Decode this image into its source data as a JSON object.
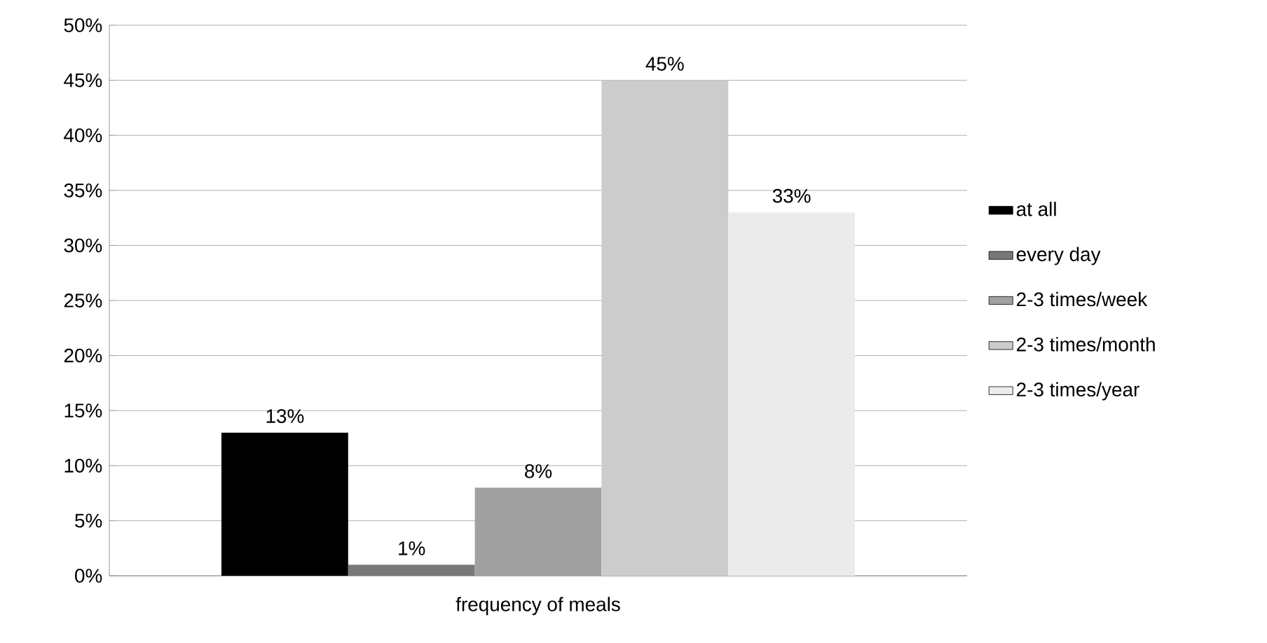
{
  "chart_data": {
    "type": "bar",
    "categories": [
      "frequency of meals"
    ],
    "series": [
      {
        "name": "at all",
        "color": "#000000",
        "values": [
          13
        ],
        "value_labels": [
          "13%"
        ]
      },
      {
        "name": "every day",
        "color": "#777777",
        "values": [
          1
        ],
        "value_labels": [
          "1%"
        ]
      },
      {
        "name": "2-3 times/week",
        "color": "#a0a0a0",
        "values": [
          8
        ],
        "value_labels": [
          "8%"
        ]
      },
      {
        "name": "2-3 times/month",
        "color": "#cccccc",
        "values": [
          45
        ],
        "value_labels": [
          "45%"
        ]
      },
      {
        "name": "2-3 times/year",
        "color": "#ebebeb",
        "values": [
          33
        ],
        "value_labels": [
          "33%"
        ]
      }
    ],
    "ylim": [
      0,
      50
    ],
    "yticks": [
      {
        "value": 0,
        "label": "0%"
      },
      {
        "value": 5,
        "label": "5%"
      },
      {
        "value": 10,
        "label": "10%"
      },
      {
        "value": 15,
        "label": "15%"
      },
      {
        "value": 20,
        "label": "20%"
      },
      {
        "value": 25,
        "label": "25%"
      },
      {
        "value": 30,
        "label": "30%"
      },
      {
        "value": 35,
        "label": "35%"
      },
      {
        "value": 40,
        "label": "40%"
      },
      {
        "value": 45,
        "label": "45%"
      },
      {
        "value": 50,
        "label": "50%"
      }
    ],
    "grid": "y",
    "legend": "right"
  }
}
